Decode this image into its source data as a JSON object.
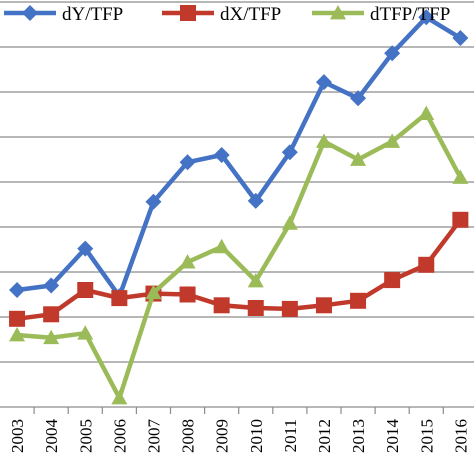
{
  "chart_data": {
    "type": "line",
    "x": [
      "2003",
      "2004",
      "2005",
      "2006",
      "2007",
      "2008",
      "2009",
      "2010",
      "2011",
      "2012",
      "2013",
      "2014",
      "2015",
      "2016"
    ],
    "series": [
      {
        "name": "dY/TFP",
        "color": "#4472C4",
        "marker": "diamond",
        "values": [
          2.3,
          2.35,
          2.76,
          2.23,
          3.28,
          3.72,
          3.8,
          3.29,
          3.83,
          4.61,
          4.43,
          4.93,
          5.33,
          5.1
        ]
      },
      {
        "name": "dX/TFP",
        "color": "#C0392B",
        "marker": "square",
        "values": [
          1.98,
          2.03,
          2.3,
          2.21,
          2.26,
          2.25,
          2.13,
          2.1,
          2.09,
          2.13,
          2.18,
          2.41,
          2.58,
          3.08
        ]
      },
      {
        "name": "dTFP/TFP",
        "color": "#9BBB59",
        "marker": "triangle",
        "values": [
          1.8,
          1.77,
          1.82,
          1.1,
          2.27,
          2.61,
          2.78,
          2.4,
          3.04,
          3.95,
          3.75,
          3.95,
          4.26,
          3.55
        ]
      }
    ],
    "xlim": [
      2002.5,
      2016.4
    ],
    "ylim": [
      1.0,
      6.0
    ],
    "ytick_step": 0.5,
    "grid": true,
    "legend_position": "top"
  }
}
